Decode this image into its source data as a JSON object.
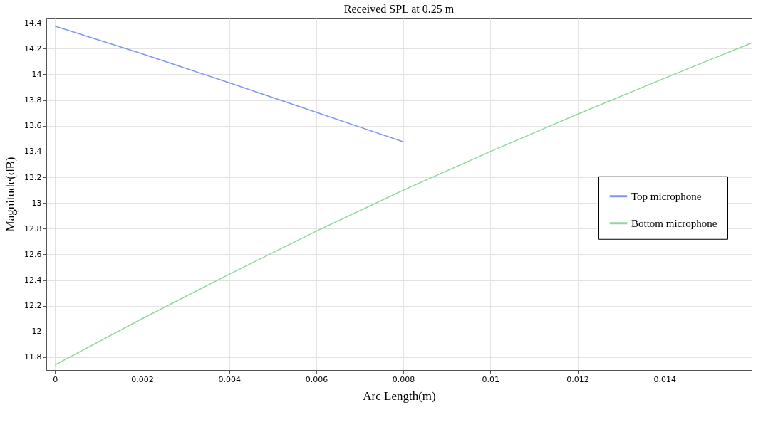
{
  "chart_data": {
    "type": "line",
    "title": "Received SPL at 0.25 m",
    "xlabel": "Arc Length(m)",
    "ylabel": "Magnitude(dB)",
    "series": [
      {
        "name": "Top microphone",
        "color": "#7f96f0",
        "x": [
          0,
          0.002,
          0.004,
          0.006,
          0.008
        ],
        "values": [
          14.375,
          14.16,
          13.935,
          13.705,
          13.475
        ]
      },
      {
        "name": "Bottom microphone",
        "color": "#8fd89a",
        "x": [
          0,
          0.002,
          0.004,
          0.006,
          0.008,
          0.01,
          0.012,
          0.014,
          0.016
        ],
        "values": [
          11.74,
          12.1,
          12.445,
          12.78,
          13.1,
          13.4,
          13.69,
          13.97,
          14.245
        ]
      }
    ],
    "xlim": [
      -0.0002,
      0.016
    ],
    "xticks": [
      0,
      0.002,
      0.004,
      0.006,
      0.008,
      0.01,
      0.012,
      0.014,
      {
        "value": 0.016,
        "label": null
      }
    ],
    "ylim": [
      11.7,
      14.44
    ],
    "yticks": [
      11.8,
      12,
      12.2,
      12.4,
      12.6,
      12.8,
      13,
      13.2,
      13.4,
      13.6,
      13.8,
      14,
      14.2,
      14.4
    ],
    "grid": true,
    "legend": "right",
    "marker": "none",
    "line_style": "solid"
  }
}
